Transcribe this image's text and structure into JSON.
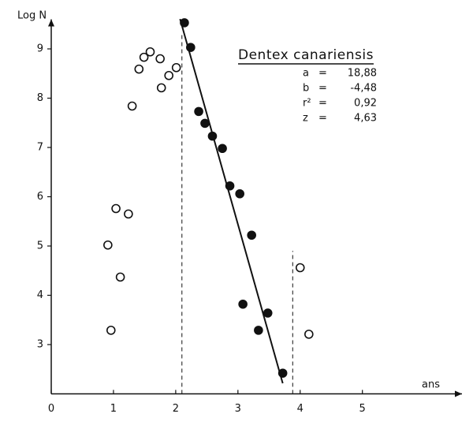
{
  "chart_data": {
    "type": "scatter",
    "title": "Dentex canariensis",
    "xlabel": "ans",
    "ylabel": "Log N",
    "xlim": [
      0,
      6.6
    ],
    "ylim": [
      2,
      9.6
    ],
    "xticks": [
      0,
      1,
      2,
      3,
      4,
      5
    ],
    "yticks": [
      3,
      4,
      5,
      6,
      7,
      8,
      9
    ],
    "series": [
      {
        "marker": "open",
        "color": "#111111",
        "x": [
          0.91,
          0.96,
          1.04,
          1.11,
          1.24,
          1.3,
          1.41,
          1.49,
          1.59,
          1.75,
          1.77,
          1.89,
          2.01,
          4.0,
          4.14
        ],
        "values": [
          5.02,
          3.29,
          5.76,
          4.37,
          5.65,
          7.84,
          8.59,
          8.83,
          8.94,
          8.8,
          8.21,
          8.46,
          8.62,
          4.56,
          3.21
        ]
      },
      {
        "marker": "filled",
        "color": "#111111",
        "x": [
          2.14,
          2.24,
          2.37,
          2.47,
          2.59,
          2.75,
          2.87,
          3.03,
          3.22,
          3.08,
          3.33,
          3.48,
          3.72
        ],
        "values": [
          9.53,
          9.03,
          7.73,
          7.49,
          7.23,
          6.98,
          6.22,
          6.06,
          5.22,
          3.82,
          3.29,
          3.64,
          2.42
        ]
      }
    ],
    "fit": {
      "equals": "=",
      "params": [
        {
          "name": "a",
          "value": 18.88,
          "label": "18,88"
        },
        {
          "name": "b",
          "value": -4.48,
          "label": "-4,48"
        },
        {
          "name": "r²",
          "value": 0.92,
          "label": "0,92"
        },
        {
          "name": "z",
          "value": 4.63,
          "label": "4,63"
        }
      ],
      "x_range": [
        2.07,
        3.72
      ]
    },
    "cutoffs": [
      {
        "x": 2.1,
        "top": 9.3
      },
      {
        "x": 3.88,
        "top": 4.9
      }
    ]
  }
}
